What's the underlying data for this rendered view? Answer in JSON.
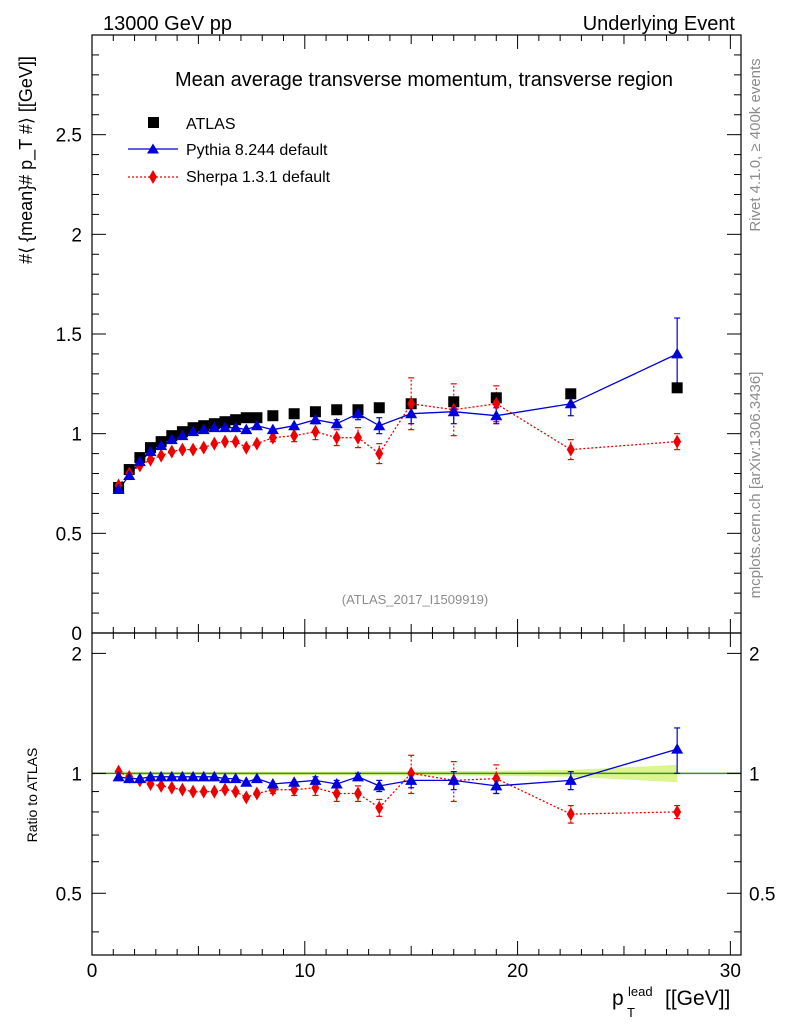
{
  "header": {
    "left": "13000 GeV pp",
    "right": "Underlying Event"
  },
  "side_labels": {
    "rivet": "Rivet 4.1.0, ≥ 400k events",
    "mcplots": "mcplots.cern.ch [arXiv:1306.3436]"
  },
  "colors": {
    "atlas": "#000000",
    "pythia": "#0000dd",
    "sherpa": "#ee0000",
    "band": "#ddf590",
    "ref_line": "#4a8a1a"
  },
  "chart_data": [
    {
      "type": "scatter",
      "title": "Mean average transverse momentum, transverse region",
      "watermark": "(ATLAS_2017_I1509919)",
      "ylabel": "#⟨ {mean}# p_T #⟩ [[GeV]]",
      "xlim": [
        0,
        30.5
      ],
      "ylim": [
        0,
        3.0
      ],
      "x_ticks": [
        0,
        10,
        20,
        30
      ],
      "y_ticks": [
        0,
        0.5,
        1,
        1.5,
        2,
        2.5
      ],
      "y_tick_labels": [
        "0",
        "0.5",
        "1",
        "1.5",
        "2",
        "2.5"
      ],
      "legend_position": "top-left",
      "x": [
        1.25,
        1.75,
        2.25,
        2.75,
        3.25,
        3.75,
        4.25,
        4.75,
        5.25,
        5.75,
        6.25,
        6.75,
        7.25,
        7.75,
        8.5,
        9.5,
        10.5,
        11.5,
        12.5,
        13.5,
        15,
        17,
        19,
        22.5,
        27.5
      ],
      "series": [
        {
          "name": "ATLAS",
          "marker": "square",
          "values": [
            0.73,
            0.82,
            0.88,
            0.93,
            0.96,
            0.99,
            1.01,
            1.03,
            1.04,
            1.05,
            1.06,
            1.07,
            1.08,
            1.08,
            1.09,
            1.1,
            1.11,
            1.12,
            1.12,
            1.13,
            1.15,
            1.16,
            1.18,
            1.2,
            1.23
          ]
        },
        {
          "name": "Pythia 8.244 default",
          "marker": "triangle",
          "line": "solid",
          "values": [
            0.72,
            0.79,
            0.86,
            0.91,
            0.94,
            0.97,
            0.99,
            1.01,
            1.02,
            1.03,
            1.03,
            1.03,
            1.02,
            1.04,
            1.02,
            1.04,
            1.07,
            1.05,
            1.1,
            1.04,
            1.1,
            1.11,
            1.09,
            1.15,
            1.4
          ],
          "errors": [
            0.005,
            0.005,
            0.005,
            0.005,
            0.005,
            0.005,
            0.005,
            0.005,
            0.005,
            0.005,
            0.005,
            0.005,
            0.005,
            0.01,
            0.01,
            0.01,
            0.02,
            0.02,
            0.03,
            0.04,
            0.05,
            0.06,
            0.04,
            0.06,
            0.18
          ]
        },
        {
          "name": "Sherpa 1.3.1 default",
          "marker": "diamond",
          "line": "dotted",
          "values": [
            0.74,
            0.8,
            0.84,
            0.87,
            0.89,
            0.91,
            0.92,
            0.92,
            0.93,
            0.95,
            0.96,
            0.96,
            0.93,
            0.95,
            0.98,
            0.99,
            1.01,
            0.98,
            0.98,
            0.9,
            1.15,
            1.12,
            1.15,
            0.92,
            0.96
          ],
          "errors": [
            0.01,
            0.01,
            0.01,
            0.01,
            0.01,
            0.01,
            0.01,
            0.01,
            0.01,
            0.01,
            0.01,
            0.01,
            0.015,
            0.015,
            0.02,
            0.03,
            0.04,
            0.04,
            0.05,
            0.05,
            0.13,
            0.13,
            0.09,
            0.05,
            0.04
          ]
        }
      ]
    },
    {
      "type": "scatter",
      "title": "",
      "ylabel": "Ratio to ATLAS",
      "xlabel_main": "p",
      "xlabel_sub": "T",
      "xlabel_sup": "lead",
      "xlabel_unit": "[[GeV]]",
      "xlim": [
        0,
        30.5
      ],
      "ylim": [
        0.35,
        2.25
      ],
      "x_ticks": [
        0,
        10,
        20,
        30
      ],
      "x_tick_labels": [
        "0",
        "10",
        "20",
        "30"
      ],
      "y_ticks": [
        0.5,
        1,
        2
      ],
      "y_tick_labels": [
        "0.5",
        "1",
        "2"
      ],
      "reference": 1.0,
      "reference_band": {
        "x": [
          1.25,
          1.75,
          2.25,
          2.75,
          3.25,
          3.75,
          4.25,
          4.75,
          5.25,
          5.75,
          6.25,
          6.75,
          7.25,
          7.75,
          8.5,
          9.5,
          10.5,
          11.5,
          12.5,
          13.5,
          15,
          17,
          19,
          22.5,
          27.5
        ],
        "half_width": [
          0.01,
          0.01,
          0.01,
          0.01,
          0.01,
          0.01,
          0.01,
          0.01,
          0.01,
          0.01,
          0.01,
          0.01,
          0.01,
          0.01,
          0.01,
          0.01,
          0.01,
          0.01,
          0.012,
          0.012,
          0.012,
          0.013,
          0.015,
          0.02,
          0.05
        ]
      },
      "x": [
        1.25,
        1.75,
        2.25,
        2.75,
        3.25,
        3.75,
        4.25,
        4.75,
        5.25,
        5.75,
        6.25,
        6.75,
        7.25,
        7.75,
        8.5,
        9.5,
        10.5,
        11.5,
        12.5,
        13.5,
        15,
        17,
        19,
        22.5,
        27.5
      ],
      "series": [
        {
          "name": "Pythia 8.244 default",
          "values": [
            0.98,
            0.97,
            0.97,
            0.98,
            0.98,
            0.98,
            0.98,
            0.98,
            0.98,
            0.98,
            0.97,
            0.97,
            0.95,
            0.97,
            0.94,
            0.95,
            0.96,
            0.94,
            0.98,
            0.93,
            0.96,
            0.96,
            0.93,
            0.96,
            1.15
          ],
          "errors": [
            0.005,
            0.005,
            0.005,
            0.005,
            0.005,
            0.005,
            0.005,
            0.005,
            0.005,
            0.005,
            0.005,
            0.005,
            0.005,
            0.01,
            0.01,
            0.01,
            0.02,
            0.02,
            0.02,
            0.03,
            0.04,
            0.05,
            0.04,
            0.05,
            0.15
          ]
        },
        {
          "name": "Sherpa 1.3.1 default",
          "values": [
            1.01,
            0.98,
            0.96,
            0.94,
            0.93,
            0.92,
            0.91,
            0.9,
            0.9,
            0.9,
            0.91,
            0.9,
            0.87,
            0.89,
            0.91,
            0.91,
            0.92,
            0.89,
            0.89,
            0.82,
            1.0,
            0.96,
            0.97,
            0.79,
            0.8
          ],
          "errors": [
            0.01,
            0.01,
            0.01,
            0.01,
            0.01,
            0.01,
            0.01,
            0.01,
            0.01,
            0.01,
            0.01,
            0.01,
            0.015,
            0.015,
            0.02,
            0.03,
            0.04,
            0.04,
            0.04,
            0.04,
            0.11,
            0.11,
            0.08,
            0.04,
            0.03
          ]
        }
      ]
    }
  ]
}
